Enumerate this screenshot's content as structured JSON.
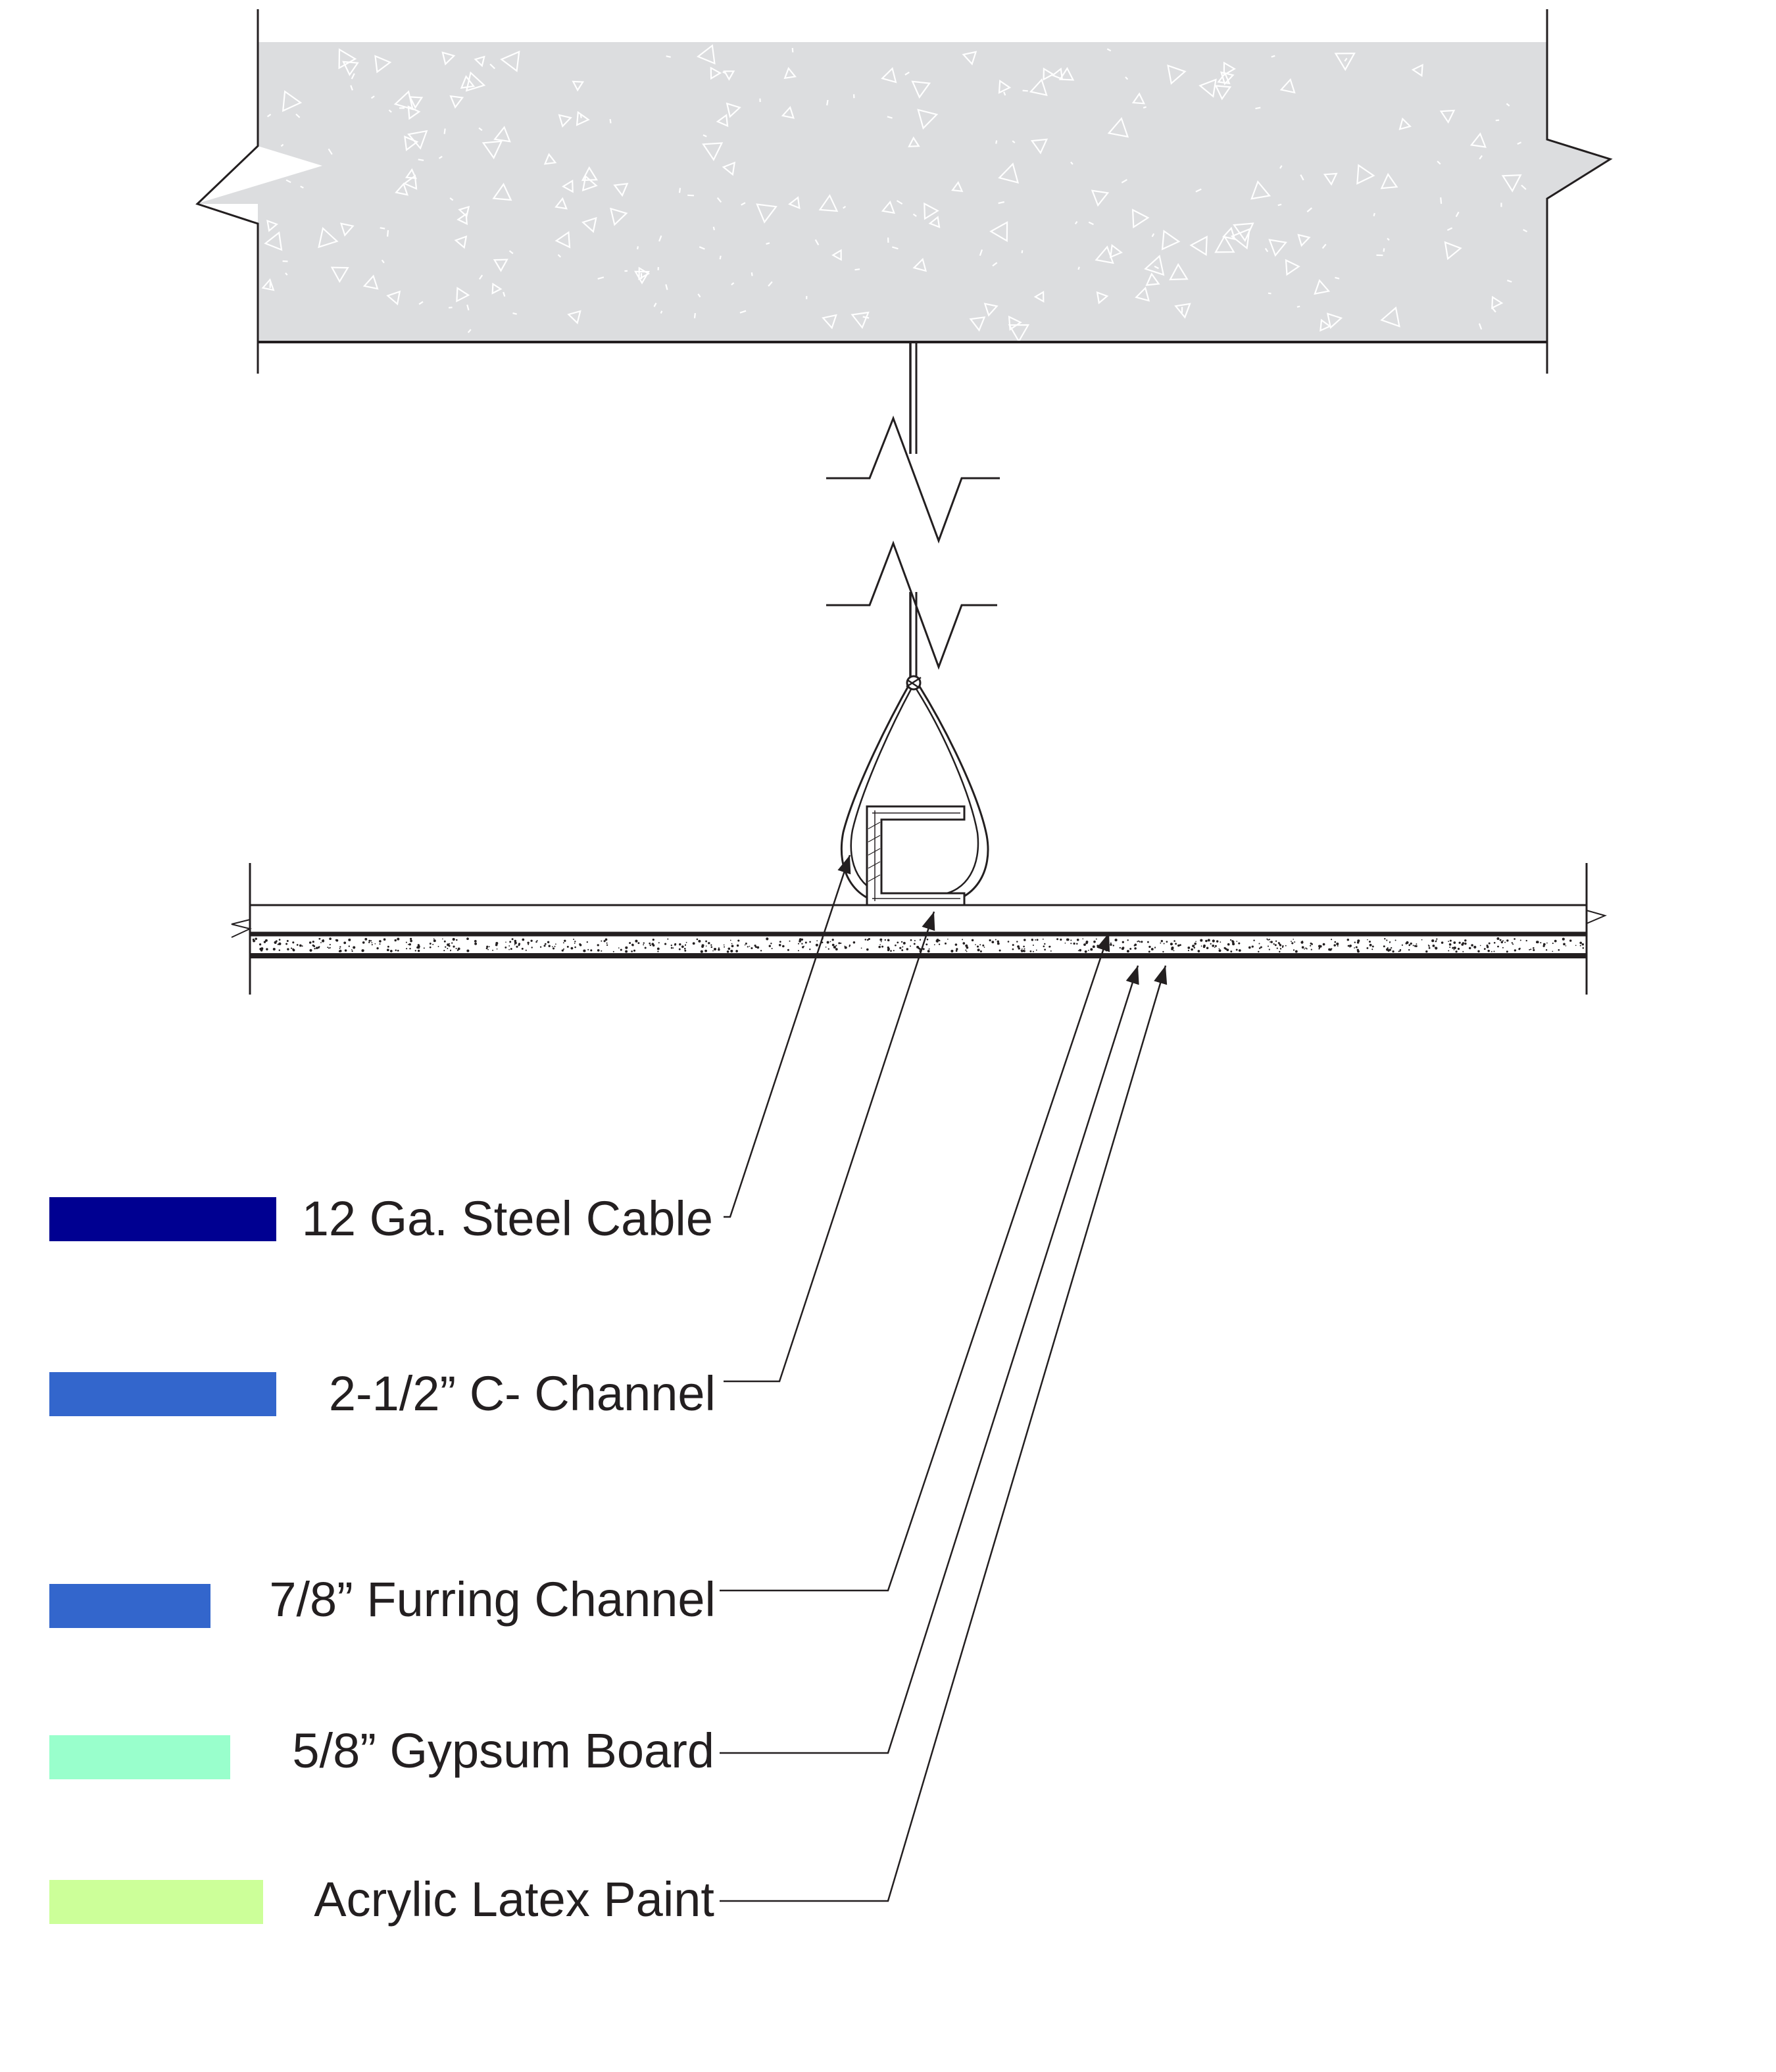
{
  "legend": {
    "items": [
      {
        "id": "steel-cable",
        "label": "12 Ga. Steel Cable",
        "color": "#000091"
      },
      {
        "id": "c-channel",
        "label": "2-1/2” C- Channel",
        "color": "#3366cc"
      },
      {
        "id": "furring-channel",
        "label": "7/8” Furring Channel",
        "color": "#3366cc"
      },
      {
        "id": "gypsum-board",
        "label": "5/8” Gypsum Board",
        "color": "#99ffcc"
      },
      {
        "id": "latex-paint",
        "label": "Acrylic Latex Paint",
        "color": "#ccff99"
      }
    ]
  },
  "colors": {
    "concrete_fill": "#dcdddf",
    "line": "#231f20"
  }
}
